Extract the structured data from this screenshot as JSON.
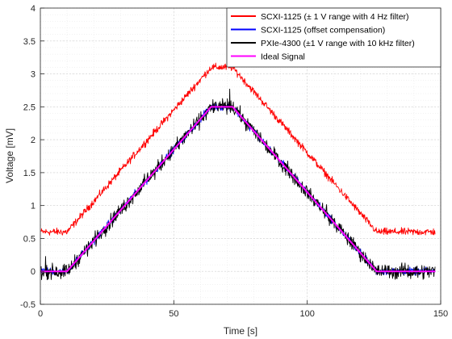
{
  "chart_data": {
    "type": "line",
    "xlabel": "Time [s]",
    "ylabel": "Voltage [mV]",
    "xlim": [
      0,
      150
    ],
    "ylim": [
      -0.5,
      4
    ],
    "xticks": [
      0,
      50,
      100,
      150
    ],
    "yticks": [
      -0.5,
      0,
      0.5,
      1,
      1.5,
      2,
      2.5,
      3,
      3.5,
      4
    ],
    "xtick_labels": [
      "0",
      "50",
      "100",
      "150"
    ],
    "ytick_labels": [
      "-0.5",
      "0",
      "0.5",
      "1",
      "1.5",
      "2",
      "2.5",
      "3",
      "3.5",
      "4"
    ],
    "grid": true,
    "minor_grid": true,
    "legend_position": "top-right",
    "series": [
      {
        "name": "SCXI-1125 (± 1 V range with 4 Hz filter)",
        "color": "#ff0000",
        "x": [
          0,
          10,
          64,
          72,
          126,
          150
        ],
        "y": [
          0.6,
          0.6,
          3.1,
          3.1,
          0.6,
          0.6
        ],
        "noise_amplitude": 0.05
      },
      {
        "name": "SCXI-1125 (offset compensation)",
        "color": "#0000ff",
        "x": [
          0,
          10,
          64,
          72,
          126,
          150
        ],
        "y": [
          0,
          0,
          2.5,
          2.5,
          0,
          0
        ],
        "noise_amplitude": 0.05
      },
      {
        "name": "PXIe-4300 (±1 V range with 10 kHz filter)",
        "color": "#000000",
        "x": [
          0,
          10,
          64,
          72,
          126,
          150
        ],
        "y": [
          0,
          0,
          2.5,
          2.5,
          0,
          0
        ],
        "noise_amplitude": 0.1
      },
      {
        "name": "Ideal Signal",
        "color": "#ff00ff",
        "x": [
          0,
          10,
          64,
          72,
          126,
          150
        ],
        "y": [
          0,
          0,
          2.5,
          2.5,
          0,
          0
        ],
        "noise_amplitude": 0
      }
    ]
  }
}
